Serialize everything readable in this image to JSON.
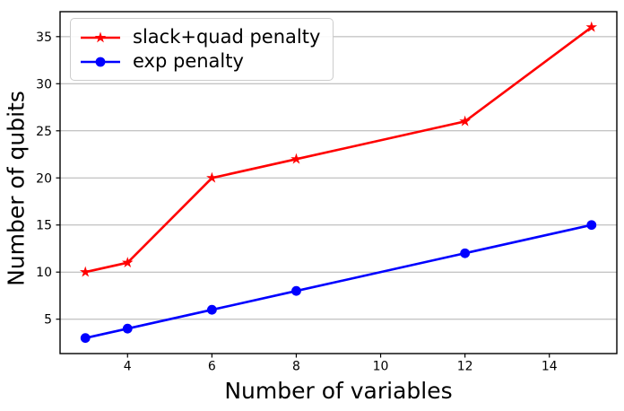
{
  "chart_data": {
    "type": "line",
    "title": "",
    "xlabel": "Number of variables",
    "ylabel": "Number of qubits",
    "x": [
      3,
      4,
      6,
      8,
      12,
      15
    ],
    "series": [
      {
        "name": "slack+quad penalty",
        "color": "#ff0000",
        "marker": "star",
        "values": [
          10,
          11,
          20,
          22,
          26,
          36
        ]
      },
      {
        "name": "exp penalty",
        "color": "#0000ff",
        "marker": "circle",
        "values": [
          3,
          4,
          6,
          8,
          12,
          15
        ]
      }
    ],
    "x_ticks": [
      4,
      6,
      8,
      10,
      12,
      14
    ],
    "y_ticks": [
      5,
      10,
      15,
      20,
      25,
      30,
      35
    ],
    "xlim": [
      2.4,
      15.6
    ],
    "ylim": [
      1.35,
      37.65
    ],
    "grid": "horizontal",
    "grid_color": "#b0b0b0",
    "spine_color": "#000000",
    "tick_color": "#000000",
    "background": "#ffffff",
    "legend_position": "upper-left"
  }
}
